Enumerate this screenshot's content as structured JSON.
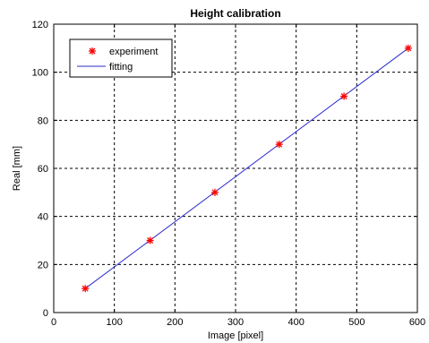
{
  "chart_data": {
    "type": "line",
    "title": "Height calibration",
    "xlabel": "Image [pixel]",
    "ylabel": "Real [mm]",
    "xlim": [
      0,
      600
    ],
    "ylim": [
      0,
      120
    ],
    "xticks": [
      0,
      100,
      200,
      300,
      400,
      500,
      600
    ],
    "yticks": [
      0,
      20,
      40,
      60,
      80,
      100,
      120
    ],
    "grid": true,
    "legend_position": "top-left",
    "series": [
      {
        "name": "experiment",
        "style": "markers",
        "marker": "asterisk",
        "color": "#ff0000",
        "x": [
          52,
          159,
          266,
          372,
          479,
          585
        ],
        "y": [
          10,
          30,
          50,
          70,
          90,
          110
        ]
      },
      {
        "name": "fitting",
        "style": "line",
        "color": "#2b2bcf",
        "x": [
          52,
          585
        ],
        "y": [
          10,
          110
        ]
      }
    ]
  }
}
